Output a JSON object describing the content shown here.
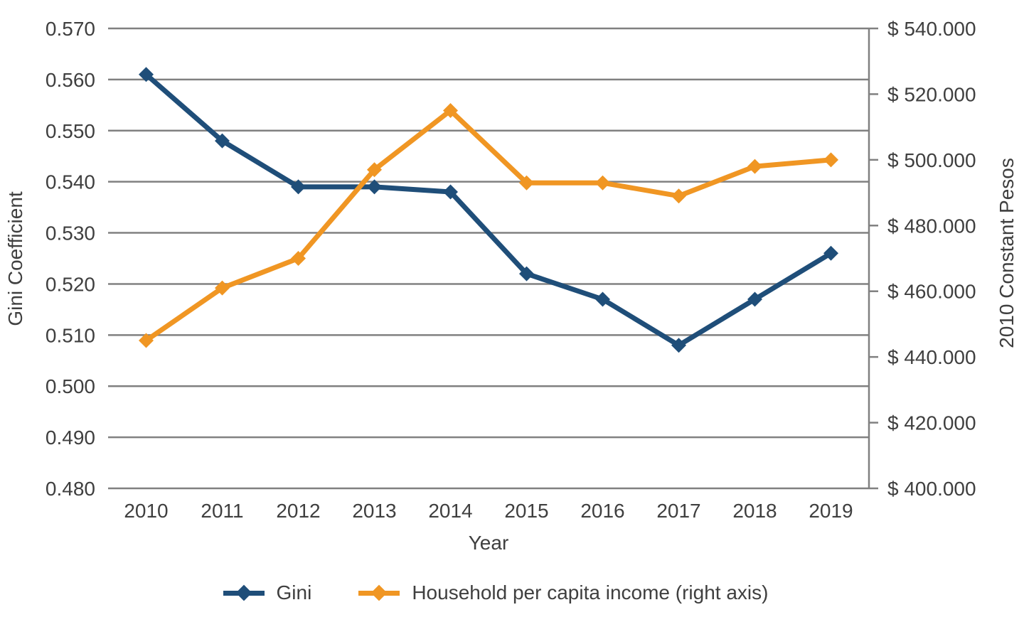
{
  "chart_data": {
    "type": "line",
    "x": [
      "2010",
      "2011",
      "2012",
      "2013",
      "2014",
      "2015",
      "2016",
      "2017",
      "2018",
      "2019"
    ],
    "xlabel": "Year",
    "series": [
      {
        "name": "Gini",
        "axis": "left",
        "color": "#1F4E79",
        "marker": "diamond",
        "values": [
          0.561,
          0.548,
          0.539,
          0.539,
          0.538,
          0.522,
          0.517,
          0.508,
          0.517,
          0.526
        ]
      },
      {
        "name": "Household per capita income (right axis)",
        "axis": "right",
        "color": "#F09623",
        "marker": "diamond",
        "values": [
          445000,
          461000,
          470000,
          497000,
          515000,
          493000,
          493000,
          489000,
          498000,
          500000
        ]
      }
    ],
    "left_axis": {
      "label": "Gini Coefficient",
      "min": 0.48,
      "max": 0.57,
      "step": 0.01,
      "tick_labels": [
        "0.480",
        "0.490",
        "0.500",
        "0.510",
        "0.520",
        "0.530",
        "0.540",
        "0.550",
        "0.560",
        "0.570"
      ]
    },
    "right_axis": {
      "label": "2010 Constant Pesos",
      "min": 400000,
      "max": 540000,
      "step": 20000,
      "tick_labels": [
        "$ 400.000",
        "$ 420.000",
        "$ 440.000",
        "$ 460.000",
        "$ 480.000",
        "$ 500.000",
        "$ 520.000",
        "$ 540.000"
      ]
    },
    "grid": true,
    "legend_position": "bottom"
  },
  "styles": {
    "background": "#FFFFFF",
    "text_color": "#3F3F3F",
    "grid_color": "#808080",
    "gini_color": "#1F4E79",
    "income_color": "#F09623"
  }
}
